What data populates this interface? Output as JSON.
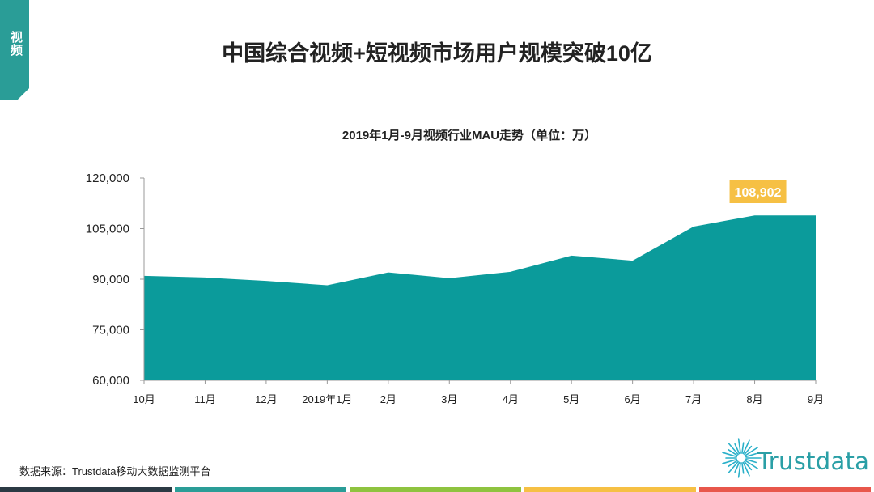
{
  "tab_label": "视频",
  "page_title": "中国综合视频+短视频市场用户规模突破10亿",
  "source_text": "数据来源：Trustdata移动大数据监测平台",
  "logo_text": "Trustdata",
  "colors": {
    "accent": "#2a9d97",
    "area_fill": "#0b9b9b",
    "callout": "#f6c044",
    "bottom_bars": [
      "#2b3a44",
      "#2a9d97",
      "#8ec33f",
      "#f6c044",
      "#e8574b"
    ]
  },
  "chart_data": {
    "type": "area",
    "title": "2019年1月-9月视频行业MAU走势（单位：万）",
    "categories": [
      "10月",
      "11月",
      "12月",
      "2019年1月",
      "2月",
      "3月",
      "4月",
      "5月",
      "6月",
      "7月",
      "8月",
      "9月"
    ],
    "values": [
      91000,
      90500,
      89500,
      88200,
      92000,
      90300,
      92200,
      97000,
      95500,
      105600,
      108902,
      108902
    ],
    "y_ticks": [
      "60,000",
      "75,000",
      "90,000",
      "105,000",
      "120,000"
    ],
    "ylim": [
      60000,
      120000
    ],
    "annotation": {
      "label": "108,902",
      "category_index": 10
    },
    "grid": false,
    "legend": "none"
  }
}
